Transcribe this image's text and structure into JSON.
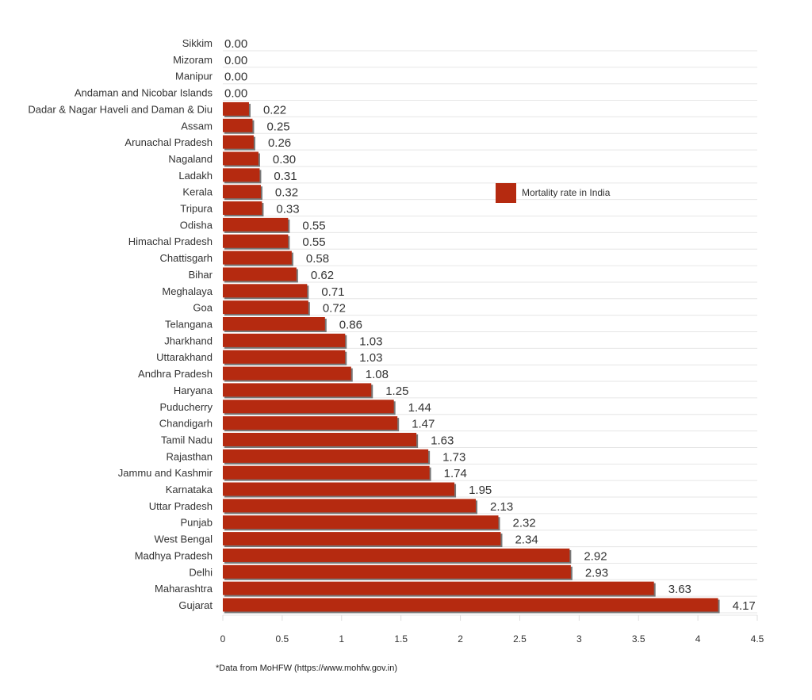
{
  "chart_data": {
    "type": "bar",
    "orientation": "horizontal",
    "categories": [
      "Sikkim",
      "Mizoram",
      "Manipur",
      "Andaman and Nicobar Islands",
      "Dadar & Nagar Haveli and Daman & Diu",
      "Assam",
      "Arunachal Pradesh",
      "Nagaland",
      "Ladakh",
      "Kerala",
      "Tripura",
      "Odisha",
      "Himachal Pradesh",
      "Chattisgarh",
      "Bihar",
      "Meghalaya",
      "Goa",
      "Telangana",
      "Jharkhand",
      "Uttarakhand",
      "Andhra Pradesh",
      "Haryana",
      "Puducherry",
      "Chandigarh",
      "Tamil Nadu",
      "Rajasthan",
      "Jammu and Kashmir",
      "Karnataka",
      "Uttar Pradesh",
      "Punjab",
      "West Bengal",
      "Madhya Pradesh",
      "Delhi",
      "Maharashtra",
      "Gujarat"
    ],
    "series": [
      {
        "name": "Mortality rate in India",
        "values": [
          0,
          0,
          0,
          0,
          0.22,
          0.25,
          0.26,
          0.3,
          0.31,
          0.32,
          0.33,
          0.55,
          0.55,
          0.58,
          0.62,
          0.71,
          0.72,
          0.86,
          1.03,
          1.03,
          1.08,
          1.25,
          1.44,
          1.47,
          1.63,
          1.73,
          1.74,
          1.95,
          2.13,
          2.32,
          2.34,
          2.92,
          2.93,
          3.63,
          4.17
        ],
        "labels": [
          "0.00",
          "0.00",
          "0.00",
          "0.00",
          "0.22",
          "0.25",
          "0.26",
          "0.30",
          "0.31",
          "0.32",
          "0.33",
          "0.55",
          "0.55",
          "0.58",
          "0.62",
          "0.71",
          "0.72",
          "0.86",
          "1.03",
          "1.03",
          "1.08",
          "1.25",
          "1.44",
          "1.47",
          "1.63",
          "1.73",
          "1.74",
          "1.95",
          "2.13",
          "2.32",
          "2.34",
          "2.92",
          "2.93",
          "3.63",
          "4.17"
        ],
        "color": "#b52a10"
      }
    ],
    "xlim": [
      0,
      4.5
    ],
    "xticks": [
      "0",
      "0.5",
      "1",
      "1.5",
      "2",
      "2.5",
      "3",
      "3.5",
      "4",
      "4.5"
    ],
    "grid": true,
    "legend_position": "right-middle",
    "title": "",
    "xlabel": "",
    "ylabel": ""
  },
  "footnote": "*Data from MoHFW (https://www.mohfw.gov.in)"
}
